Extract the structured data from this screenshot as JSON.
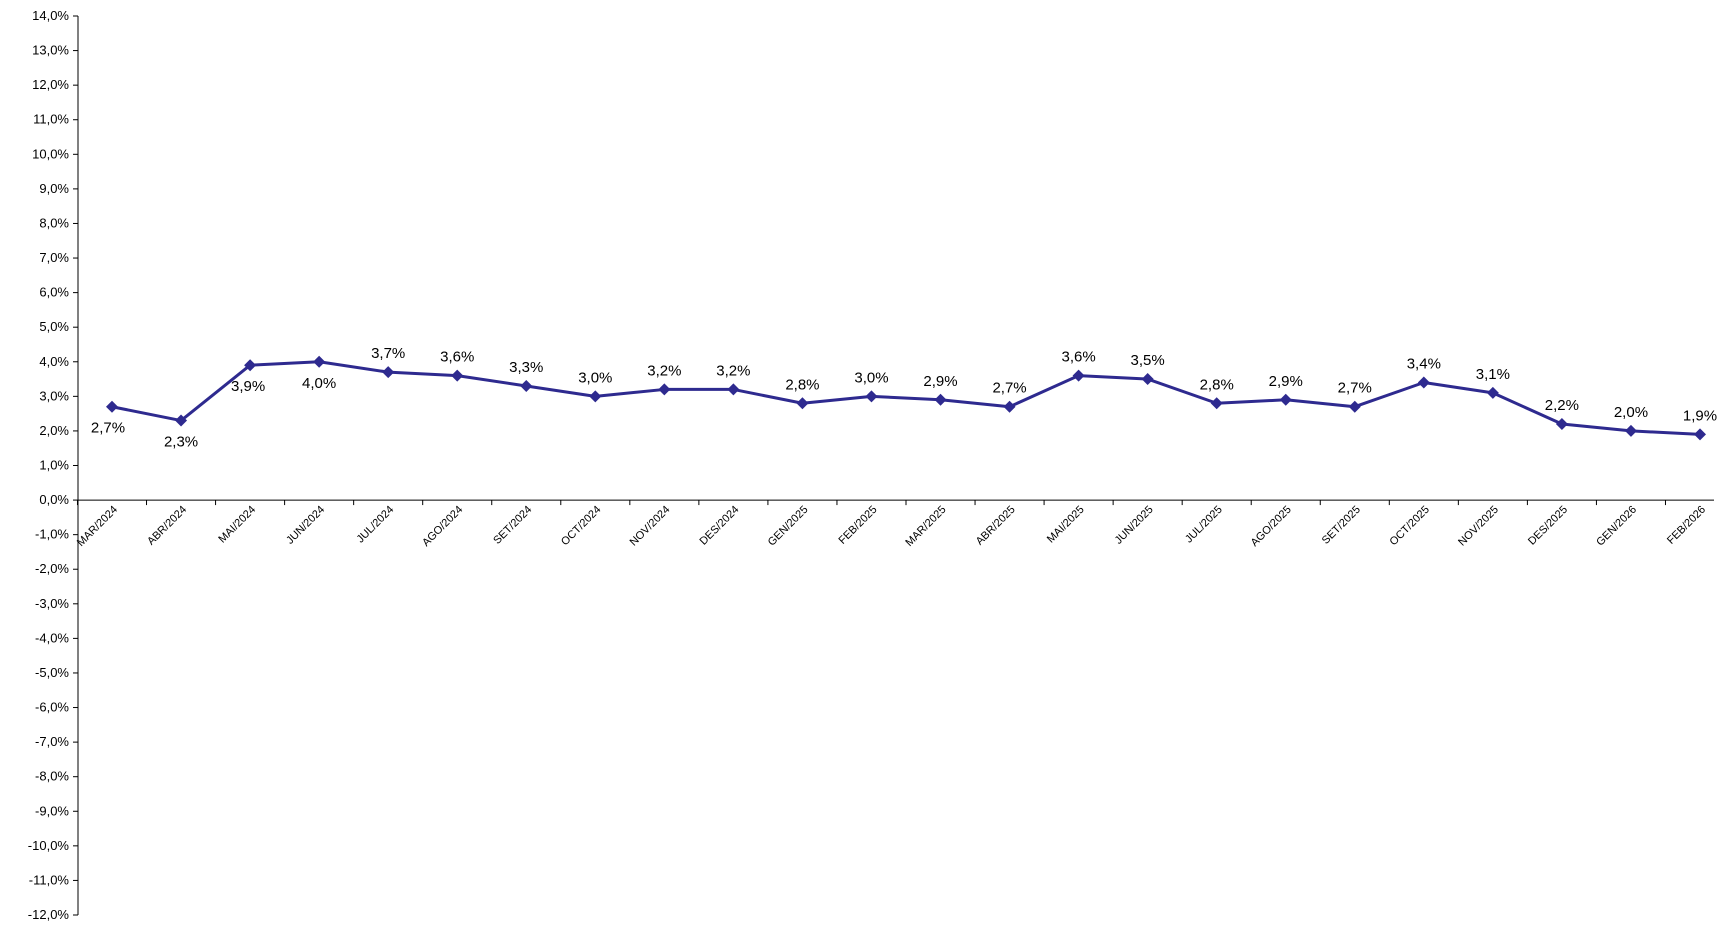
{
  "chart_data": {
    "type": "line",
    "title": "",
    "xlabel": "",
    "ylabel": "",
    "ylim": [
      -12.0,
      14.0
    ],
    "ytick_step": 1.0,
    "y_tick_format": "percent_comma_1dp",
    "grid": false,
    "legend": "none",
    "line_color": "#2E2A8F",
    "marker": "diamond",
    "categories": [
      "MAR/2024",
      "ABR/2024",
      "MAI/2024",
      "JUN/2024",
      "JUL/2024",
      "AGO/2024",
      "SET/2024",
      "OCT/2024",
      "NOV/2024",
      "DES/2024",
      "GEN/2025",
      "FEB/2025",
      "MAR/2025",
      "ABR/2025",
      "MAI/2025",
      "JUN/2025",
      "JUL/2025",
      "AGO/2025",
      "SET/2025",
      "OCT/2025",
      "NOV/2025",
      "DES/2025",
      "GEN/2026",
      "FEB/2026"
    ],
    "series": [
      {
        "values": [
          2.7,
          2.3,
          3.9,
          4.0,
          3.7,
          3.6,
          3.3,
          3.0,
          3.2,
          3.2,
          2.8,
          3.0,
          2.9,
          2.7,
          3.6,
          3.5,
          2.8,
          2.9,
          2.7,
          3.4,
          3.1,
          2.2,
          2.0,
          1.9
        ],
        "data_labels": [
          "2,7%",
          "2,3%",
          "3,9%",
          "4,0%",
          "3,7%",
          "3,6%",
          "3,3%",
          "3,0%",
          "3,2%",
          "3,2%",
          "2,8%",
          "3,0%",
          "2,9%",
          "2,7%",
          "3,6%",
          "3,5%",
          "2,8%",
          "2,9%",
          "2,7%",
          "3,4%",
          "3,1%",
          "2,2%",
          "2,0%",
          "1,9%"
        ]
      }
    ]
  }
}
